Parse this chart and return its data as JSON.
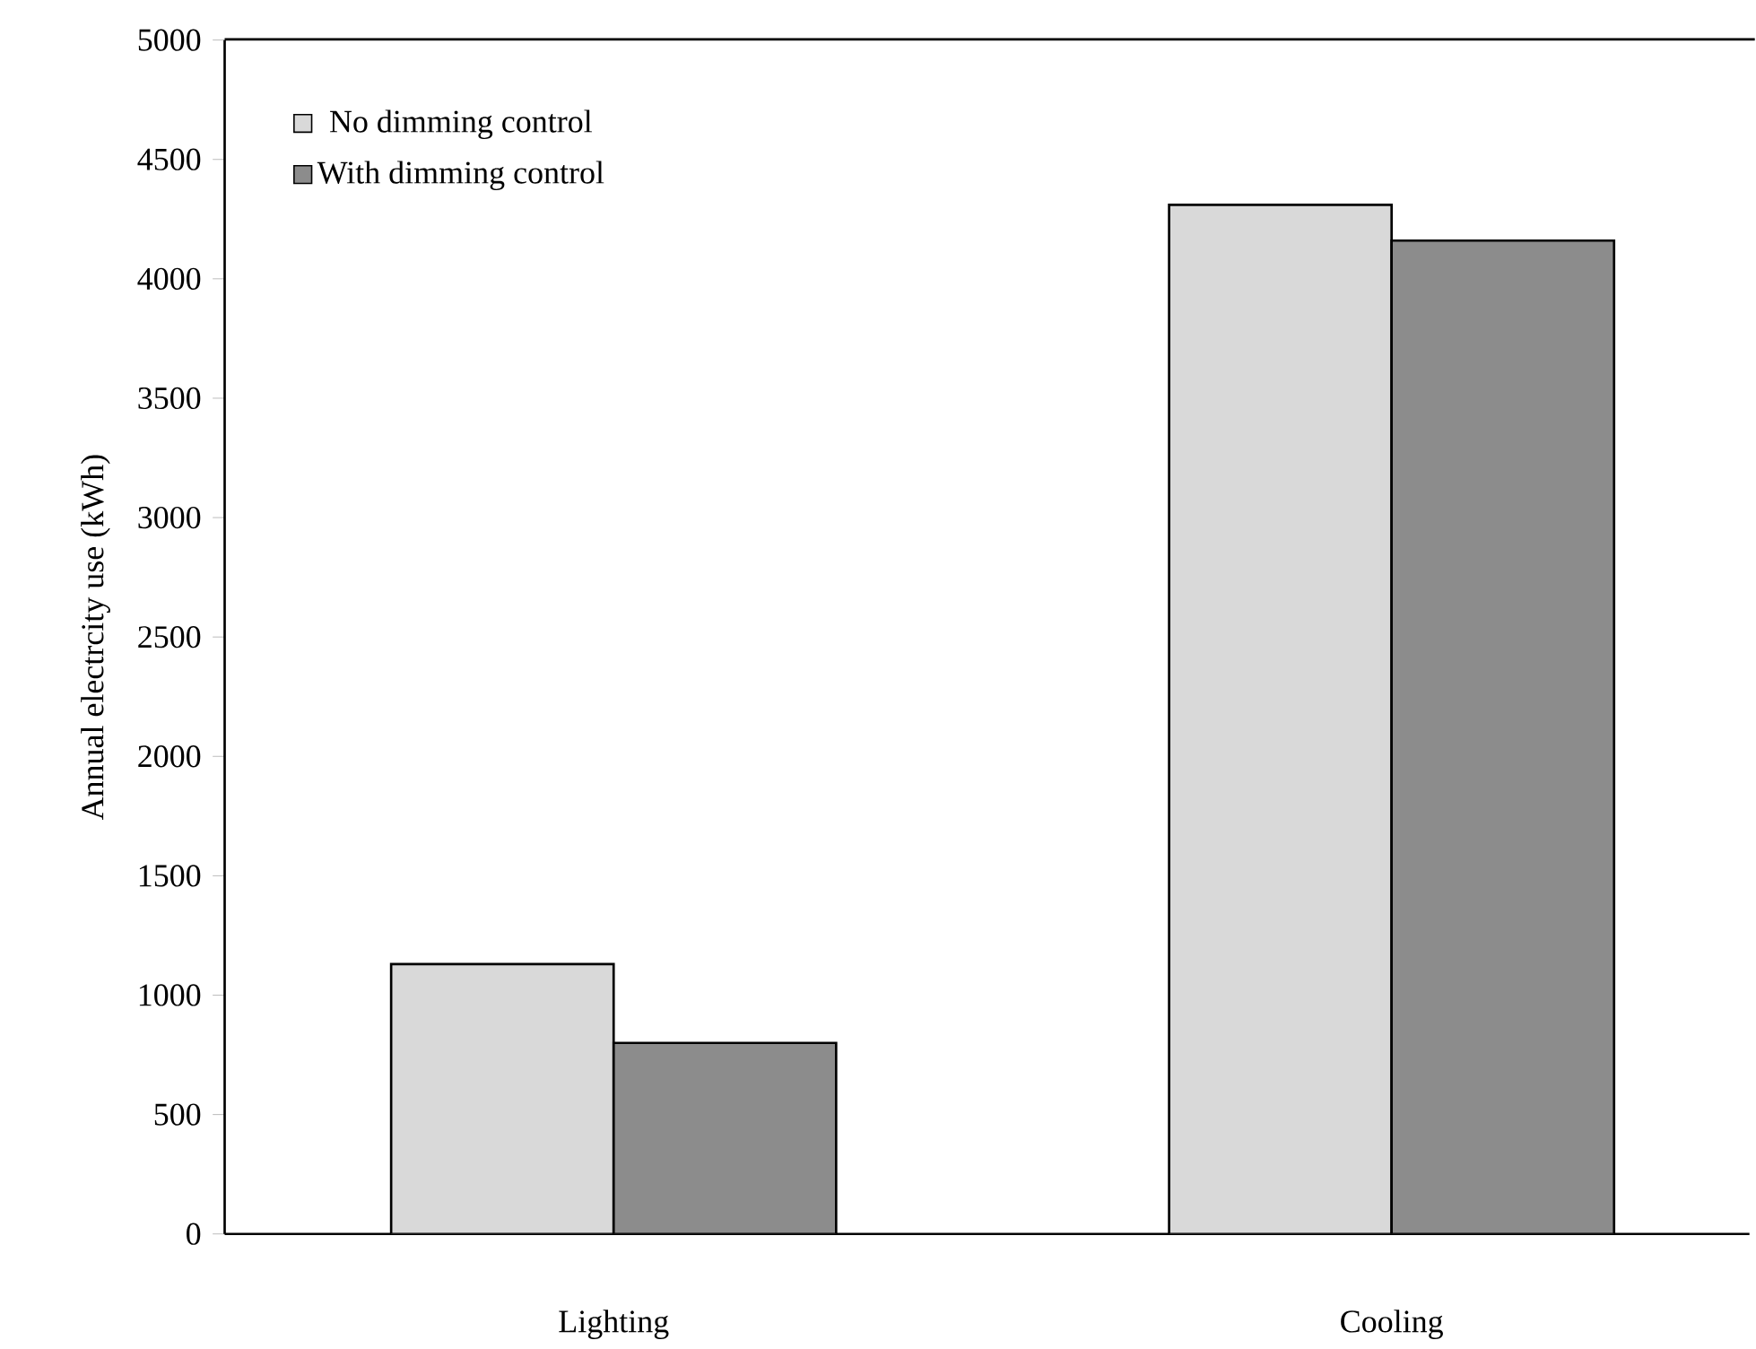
{
  "chart_data": {
    "type": "bar",
    "ylabel": "Annual electrcity use (kWh)",
    "categories": [
      "Lighting",
      "Cooling"
    ],
    "series": [
      {
        "name": "No dimming control",
        "color": "#d9d9d9",
        "values": [
          1130,
          4310
        ]
      },
      {
        "name": "With dimming control",
        "color": "#8c8c8c",
        "values": [
          800,
          4160
        ]
      }
    ],
    "ylim": [
      0,
      5000
    ],
    "yticks": [
      0,
      500,
      1000,
      1500,
      2000,
      2500,
      3000,
      3500,
      4000,
      4500,
      5000
    ],
    "legend": "top left",
    "grid": false
  }
}
